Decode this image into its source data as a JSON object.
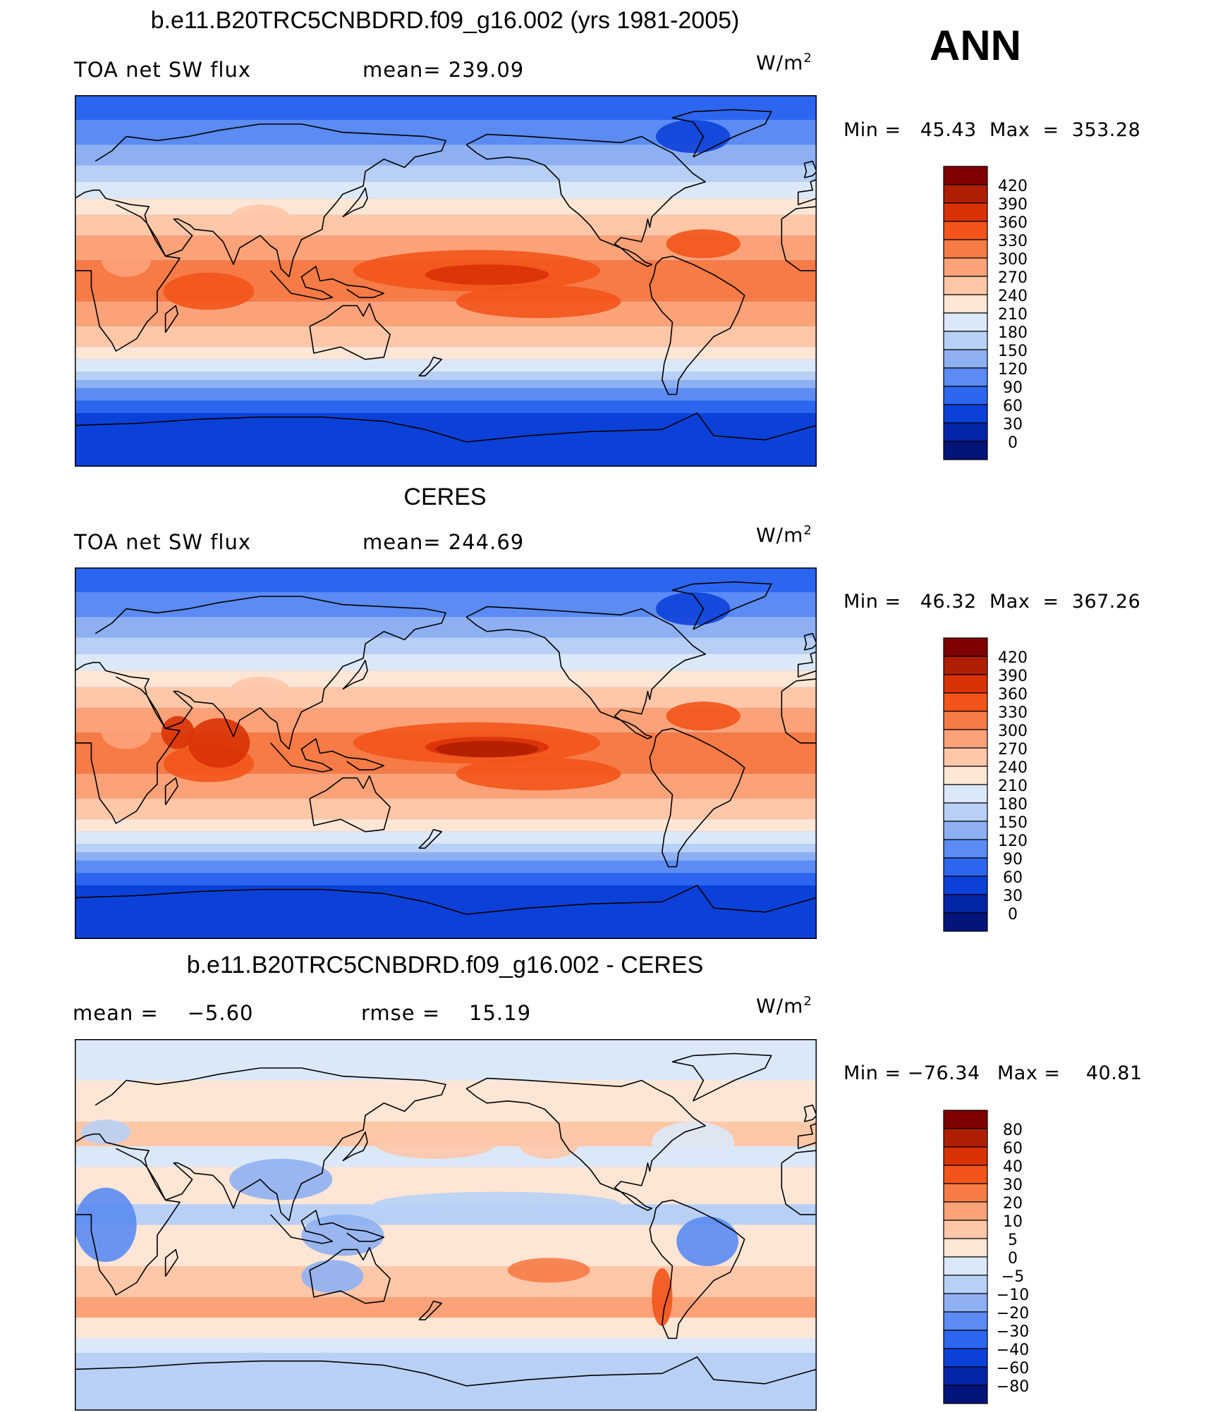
{
  "season": "ANN",
  "chart_data": [
    {
      "type": "heatmap",
      "title": "b.e11.B20TRC5CNBDRD.f09_g16.002 (yrs 1981-2005)",
      "left_label": "TOA net SW flux",
      "center_label": "mean= 239.09",
      "units": "W/m",
      "units_exp": "2",
      "min_text": "Min =   45.43",
      "max_text": "Max  =  353.28",
      "min": 45.43,
      "max": 353.28,
      "mean": 239.09,
      "levels": [
        "420",
        "390",
        "360",
        "330",
        "300",
        "270",
        "240",
        "210",
        "180",
        "150",
        "120",
        "90",
        "60",
        "30",
        "0"
      ],
      "colors": [
        "#7f0000",
        "#b01e00",
        "#d93305",
        "#f2541a",
        "#f77b46",
        "#fba279",
        "#fdc7a8",
        "#fde6d5",
        "#dbe8f8",
        "#b8d0f5",
        "#8eb0f3",
        "#5b8bf3",
        "#2c66f0",
        "#0c41d9",
        "#0525a8",
        "#00147a"
      ]
    },
    {
      "type": "heatmap",
      "title": "CERES",
      "left_label": "TOA net SW flux",
      "center_label": "mean= 244.69",
      "units": "W/m",
      "units_exp": "2",
      "min_text": "Min =   46.32",
      "max_text": "Max  =  367.26",
      "min": 46.32,
      "max": 367.26,
      "mean": 244.69,
      "levels": [
        "420",
        "390",
        "360",
        "330",
        "300",
        "270",
        "240",
        "210",
        "180",
        "150",
        "120",
        "90",
        "60",
        "30",
        "0"
      ],
      "colors": [
        "#7f0000",
        "#b01e00",
        "#d93305",
        "#f2541a",
        "#f77b46",
        "#fba279",
        "#fdc7a8",
        "#fde6d5",
        "#dbe8f8",
        "#b8d0f5",
        "#8eb0f3",
        "#5b8bf3",
        "#2c66f0",
        "#0c41d9",
        "#0525a8",
        "#00147a"
      ]
    },
    {
      "type": "heatmap",
      "title": "b.e11.B20TRC5CNBDRD.f09_g16.002 - CERES",
      "left_label": "mean =    −5.60",
      "center_label": "rmse =    15.19",
      "units": "W/m",
      "units_exp": "2",
      "min_text": "Min = −76.34",
      "max_text": "Max =    40.81",
      "min": -76.34,
      "max": 40.81,
      "mean": -5.6,
      "rmse": 15.19,
      "levels": [
        "80",
        "60",
        "40",
        "30",
        "20",
        "10",
        "5",
        "0",
        "−5",
        "−10",
        "−20",
        "−30",
        "−40",
        "−60",
        "−80"
      ],
      "colors": [
        "#7f0000",
        "#b01e00",
        "#d93305",
        "#f2541a",
        "#f77b46",
        "#fba279",
        "#fdc7a8",
        "#fde6d5",
        "#dbe8f8",
        "#b8d0f5",
        "#8eb0f3",
        "#5b8bf3",
        "#2c66f0",
        "#0c41d9",
        "#0525a8",
        "#00147a"
      ]
    }
  ]
}
